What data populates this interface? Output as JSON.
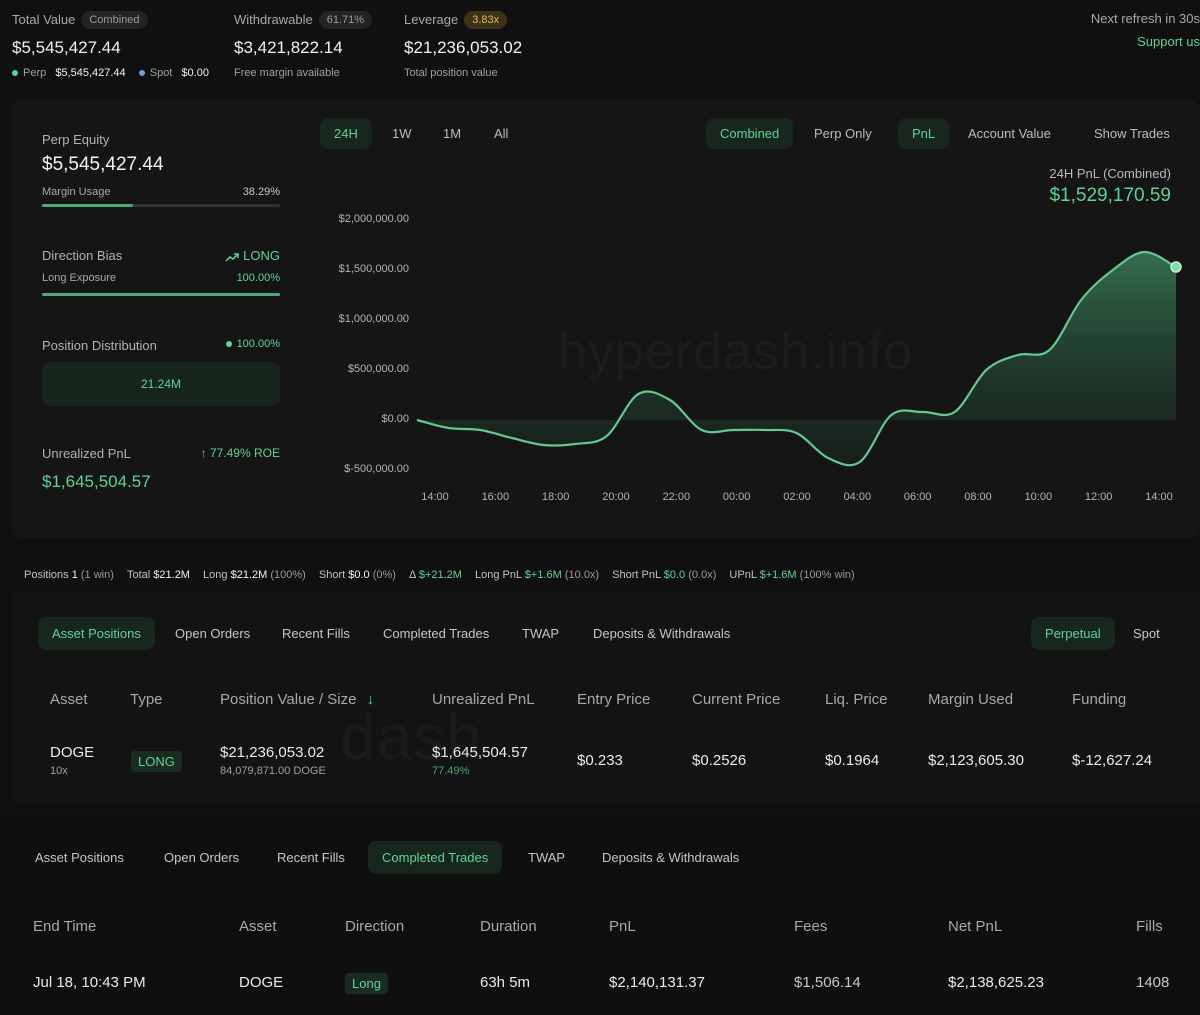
{
  "summary": {
    "total_value": {
      "label": "Total Value",
      "badge": "Combined",
      "value": "$5,545,427.44",
      "perp_label": "Perp",
      "perp_value": "$5,545,427.44",
      "spot_label": "Spot",
      "spot_value": "$0.00"
    },
    "withdrawable": {
      "label": "Withdrawable",
      "badge": "61.71%",
      "value": "$3,421,822.14",
      "sub": "Free margin available"
    },
    "leverage": {
      "label": "Leverage",
      "badge": "3.83x",
      "value": "$21,236,053.02",
      "sub": "Total position value"
    },
    "refresh": "Next refresh in 30s",
    "support": "Support us"
  },
  "left_panel": {
    "perp_equity_label": "Perp Equity",
    "perp_equity_value": "$5,545,427.44",
    "margin_usage_label": "Margin Usage",
    "margin_usage_value": "38.29%",
    "margin_usage_fraction": 0.3829,
    "direction_bias_label": "Direction Bias",
    "direction_bias_value": "LONG",
    "long_exposure_label": "Long Exposure",
    "long_exposure_value": "100.00%",
    "long_exposure_fraction": 1.0,
    "position_distribution_label": "Position Distribution",
    "position_distribution_value": "100.00%",
    "distribution_box": "21.24M",
    "unrealized_pnl_label": "Unrealized PnL",
    "roe": "77.49% ROE",
    "unrealized_pnl_value": "$1,645,504.57"
  },
  "chart_controls": {
    "ranges": [
      "24H",
      "1W",
      "1M",
      "All"
    ],
    "active_range": "24H",
    "modes": [
      "Combined",
      "Perp Only"
    ],
    "metrics": [
      "PnL",
      "Account Value"
    ],
    "show_trades": "Show Trades",
    "pnl_title": "24H PnL (Combined)",
    "pnl_value": "$1,529,170.59",
    "watermark": "hyperdash.info"
  },
  "chart_data": {
    "type": "area",
    "y_ticks": [
      "$2,000,000.00",
      "$1,500,000.00",
      "$1,000,000.00",
      "$500,000.00",
      "$0.00",
      "$-500,000.00"
    ],
    "ylim": [
      -500000,
      2000000
    ],
    "x_ticks": [
      "14:00",
      "16:00",
      "18:00",
      "20:00",
      "22:00",
      "00:00",
      "02:00",
      "04:00",
      "06:00",
      "08:00",
      "10:00",
      "12:00",
      "14:00"
    ],
    "series": [
      {
        "values": [
          0,
          -80000,
          -100000,
          -180000,
          -250000,
          -240000,
          -160000,
          260000,
          200000,
          -100000,
          -100000,
          -100000,
          -130000,
          -380000,
          -420000,
          50000,
          80000,
          80000,
          500000,
          650000,
          700000,
          1200000,
          1500000,
          1680000,
          1530000
        ]
      }
    ],
    "color": "#5fd394"
  },
  "positions_bar": {
    "positions_label": "Positions",
    "positions_value": "1",
    "positions_win": "(1 win)",
    "total_label": "Total",
    "total_value": "$21.2M",
    "long_label": "Long",
    "long_value": "$21.2M",
    "long_pct": "(100%)",
    "short_label": "Short",
    "short_value": "$0.0",
    "short_pct": "(0%)",
    "delta_label": "Δ",
    "delta_value": "$+21.2M",
    "longpnl_label": "Long PnL",
    "longpnl_value": "$+1.6M",
    "longpnl_x": "(10.0x)",
    "shortpnl_label": "Short PnL",
    "shortpnl_value": "$0.0",
    "shortpnl_x": "(0.0x)",
    "upnl_label": "UPnL",
    "upnl_value": "$+1.6M",
    "upnl_win": "(100% win)"
  },
  "tabs1": {
    "items": [
      "Asset Positions",
      "Open Orders",
      "Recent Fills",
      "Completed Trades",
      "TWAP",
      "Deposits & Withdrawals"
    ],
    "active": "Asset Positions",
    "right": [
      "Perpetual",
      "Spot"
    ],
    "right_active": "Perpetual"
  },
  "positions_table": {
    "headers": [
      "Asset",
      "Type",
      "Position Value / Size",
      "Unrealized PnL",
      "Entry Price",
      "Current Price",
      "Liq. Price",
      "Margin Used",
      "Funding"
    ],
    "row": {
      "asset": "DOGE",
      "leverage": "10x",
      "type": "LONG",
      "position_value": "$21,236,053.02",
      "size": "84,079,871.00 DOGE",
      "upnl": "$1,645,504.57",
      "upnl_pct": "77.49%",
      "entry": "$0.233",
      "current": "$0.2526",
      "liq": "$0.1964",
      "margin": "$2,123,605.30",
      "funding": "$-12,627.24"
    }
  },
  "tabs2": {
    "items": [
      "Asset Positions",
      "Open Orders",
      "Recent Fills",
      "Completed Trades",
      "TWAP",
      "Deposits & Withdrawals"
    ],
    "active": "Completed Trades"
  },
  "trades_table": {
    "headers": [
      "End Time",
      "Asset",
      "Direction",
      "Duration",
      "PnL",
      "Fees",
      "Net PnL",
      "Fills"
    ],
    "row": {
      "end_time": "Jul 18, 10:43 PM",
      "asset": "DOGE",
      "direction": "Long",
      "duration": "63h 5m",
      "pnl": "$2,140,131.37",
      "fees": "$1,506.14",
      "net_pnl": "$2,138,625.23",
      "fills": "1408"
    }
  }
}
